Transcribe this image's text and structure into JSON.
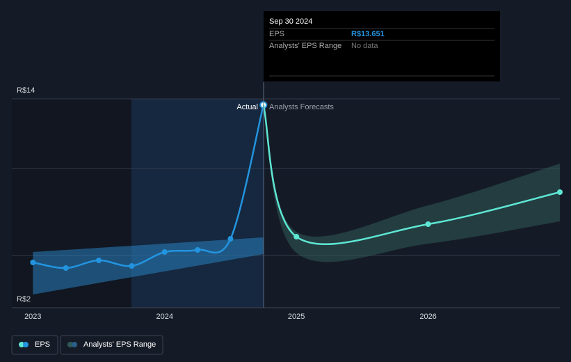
{
  "chart_data": {
    "type": "line",
    "xlim": [
      2022.84,
      2027.0
    ],
    "xticks": [
      2023,
      2024,
      2025,
      2026
    ],
    "ylim": [
      2,
      14
    ],
    "yticks": [
      {
        "value": 2,
        "label": "R$2"
      },
      {
        "value": 14,
        "label": "R$14"
      }
    ],
    "ygrid": [
      5,
      10,
      14
    ],
    "series": [
      {
        "name": "Actual",
        "color": "#2394df",
        "x": [
          2023,
          2023.25,
          2023.5,
          2023.75,
          2024,
          2024.25,
          2024.5,
          2024.75
        ],
        "values": [
          4.6,
          4.28,
          4.72,
          4.4,
          5.2,
          5.32,
          5.96,
          13.651
        ],
        "value_labels": [
          null,
          null,
          null,
          null,
          null,
          null,
          null,
          "R$13.651"
        ]
      },
      {
        "name": "Analysts Forecasts",
        "color": "#5ee6d3",
        "x": [
          2024.75,
          2025,
          2026,
          2027
        ],
        "values": [
          13.651,
          6.08,
          6.8,
          8.64
        ]
      }
    ],
    "ranges": [
      {
        "color": "#2a7fc0",
        "x": [
          2023,
          2024.75
        ],
        "upper": [
          5.2,
          6.04
        ],
        "lower": [
          2.76,
          5.08
        ]
      },
      {
        "color": "#2f5a57",
        "x": [
          2024.75,
          2025,
          2026,
          2027
        ],
        "upper": [
          13.651,
          6.36,
          7.88,
          10.28
        ],
        "lower": [
          13.651,
          5.16,
          5.68,
          6.96
        ]
      }
    ],
    "tooltip": {
      "date": "Sep 30 2024",
      "eps_label": "EPS",
      "range_label": "Analysts' EPS Range",
      "range_value": "No data"
    },
    "legend": [
      "EPS",
      "Analysts' EPS Range"
    ]
  }
}
